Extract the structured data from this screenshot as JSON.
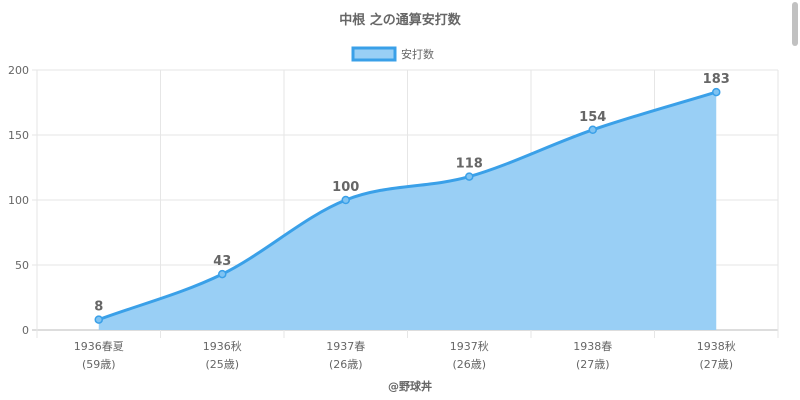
{
  "chart_data": {
    "type": "area",
    "title": "中根 之の通算安打数",
    "legend": {
      "label": "安打数",
      "placement": "top"
    },
    "categories": [
      [
        "1936春夏",
        "(59歳)"
      ],
      [
        "1936秋",
        "(25歳)"
      ],
      [
        "1937春",
        "(26歳)"
      ],
      [
        "1937秋",
        "(26歳)"
      ],
      [
        "1938春",
        "(27歳)"
      ],
      [
        "1938秋",
        "(27歳)"
      ]
    ],
    "series": [
      {
        "name": "安打数",
        "values": [
          8,
          43,
          100,
          118,
          154,
          183
        ]
      }
    ],
    "y_ticks": [
      0,
      50,
      100,
      150,
      200
    ],
    "ylim": [
      0,
      200
    ],
    "grid": true,
    "source": "@野球丼",
    "colors": {
      "line": "#3aa0e8",
      "fill": "#99cff5",
      "grid": "#e6e6e6",
      "text": "#666666"
    }
  }
}
